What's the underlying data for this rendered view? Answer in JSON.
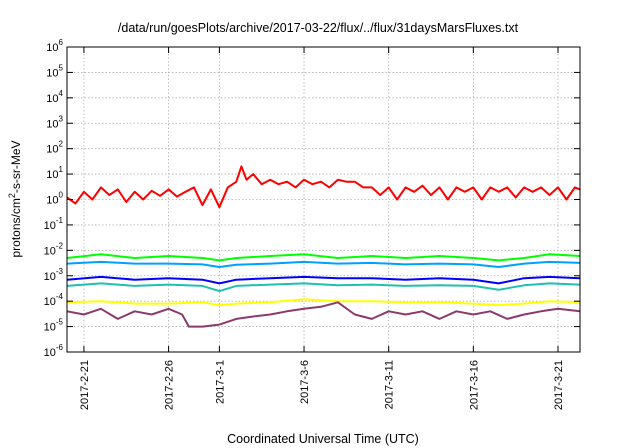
{
  "chart_data": {
    "type": "line",
    "title": "/data/run/goesPlots/archive/2017-03-22/flux/../flux/31daysMarsFluxes.txt",
    "xlabel": "Coordinated Universal Time (UTC)",
    "ylabel_main": "protons/cm",
    "ylabel_sup": "2",
    "ylabel_rest": "-s-sr-MeV",
    "yscale": "log",
    "ylim": [
      1e-06,
      1000000.0
    ],
    "y_ticks": [
      {
        "base": "10",
        "exp": "-6",
        "value": 1e-06
      },
      {
        "base": "10",
        "exp": "-5",
        "value": 1e-05
      },
      {
        "base": "10",
        "exp": "-4",
        "value": 0.0001
      },
      {
        "base": "10",
        "exp": "-3",
        "value": 0.001
      },
      {
        "base": "10",
        "exp": "-2",
        "value": 0.01
      },
      {
        "base": "10",
        "exp": "-1",
        "value": 0.1
      },
      {
        "base": "10",
        "exp": "0",
        "value": 1
      },
      {
        "base": "10",
        "exp": "1",
        "value": 10
      },
      {
        "base": "10",
        "exp": "2",
        "value": 100
      },
      {
        "base": "10",
        "exp": "3",
        "value": 1000
      },
      {
        "base": "10",
        "exp": "4",
        "value": 10000
      },
      {
        "base": "10",
        "exp": "5",
        "value": 100000
      },
      {
        "base": "10",
        "exp": "6",
        "value": 1000000
      }
    ],
    "xlim": [
      "2017-02-20",
      "2017-03-23"
    ],
    "x_ticks": [
      "2017-2-21",
      "2017-2-26",
      "2017-3-1",
      "2017-3-6",
      "2017-3-11",
      "2017-3-16",
      "2017-3-21"
    ],
    "x_tick_days": [
      1,
      6,
      9,
      14,
      19,
      24,
      29
    ],
    "x_span_days": 30.3,
    "grid": true,
    "series": [
      {
        "color": "#ff0000",
        "x_days": [
          0.0,
          0.5,
          1.0,
          1.5,
          2.0,
          2.5,
          3.0,
          3.5,
          4.0,
          4.5,
          5.0,
          5.5,
          6.0,
          6.5,
          7.0,
          7.5,
          8.0,
          8.5,
          9.0,
          9.5,
          10.0,
          10.3,
          10.6,
          11.0,
          11.5,
          12.0,
          12.5,
          13.0,
          13.5,
          14.0,
          14.5,
          15.0,
          15.5,
          16.0,
          16.5,
          17.0,
          17.5,
          18.0,
          18.5,
          19.0,
          19.5,
          20.0,
          20.5,
          21.0,
          21.5,
          22.0,
          22.5,
          23.0,
          23.5,
          24.0,
          24.5,
          25.0,
          25.5,
          26.0,
          26.5,
          27.0,
          27.5,
          28.0,
          28.5,
          29.0,
          29.5,
          30.0,
          30.3
        ],
        "values": [
          1.2,
          0.7,
          2.0,
          1.0,
          3.0,
          1.5,
          2.5,
          0.8,
          2.0,
          1.0,
          2.2,
          1.4,
          2.5,
          1.3,
          2.0,
          3.0,
          0.6,
          2.5,
          0.5,
          3.0,
          5.0,
          20.0,
          6.0,
          10.0,
          4.0,
          6.0,
          4.0,
          5.0,
          3.0,
          6.0,
          4.0,
          5.0,
          3.0,
          6.0,
          5.0,
          5.0,
          3.0,
          3.0,
          1.5,
          3.0,
          1.0,
          3.0,
          2.0,
          3.5,
          1.5,
          3.0,
          1.0,
          3.0,
          2.0,
          3.0,
          1.0,
          3.0,
          2.0,
          3.0,
          1.2,
          3.0,
          2.0,
          3.0,
          1.5,
          3.0,
          1.0,
          3.0,
          2.5
        ]
      },
      {
        "color": "#00ff00",
        "x_days": [
          0,
          2,
          4,
          6,
          8,
          9,
          10,
          12,
          14,
          16,
          18,
          20,
          22,
          24,
          25.5,
          27,
          28.5,
          30.3
        ],
        "values": [
          0.005,
          0.007,
          0.005,
          0.006,
          0.005,
          0.004,
          0.005,
          0.006,
          0.007,
          0.005,
          0.006,
          0.005,
          0.006,
          0.005,
          0.004,
          0.005,
          0.007,
          0.006
        ]
      },
      {
        "color": "#00a0ff",
        "x_days": [
          0,
          2,
          4,
          6,
          8,
          9,
          10,
          12,
          14,
          16,
          18,
          20,
          22,
          24,
          25.5,
          27,
          28.5,
          30.3
        ],
        "values": [
          0.003,
          0.0035,
          0.003,
          0.003,
          0.0028,
          0.0022,
          0.0027,
          0.003,
          0.0035,
          0.003,
          0.0032,
          0.0028,
          0.003,
          0.0028,
          0.0022,
          0.003,
          0.0035,
          0.0032
        ]
      },
      {
        "color": "#0000ff",
        "x_days": [
          0,
          2,
          4,
          6,
          8,
          9,
          10,
          12,
          14,
          16,
          18,
          20,
          22,
          24,
          25.5,
          27,
          28.5,
          30.3
        ],
        "values": [
          0.0007,
          0.0009,
          0.0007,
          0.0008,
          0.0007,
          0.0005,
          0.0007,
          0.0008,
          0.0009,
          0.0008,
          0.0008,
          0.0007,
          0.0008,
          0.0007,
          0.0005,
          0.0008,
          0.0009,
          0.0008
        ]
      },
      {
        "color": "#20c0b0",
        "x_days": [
          0,
          2,
          4,
          6,
          8,
          9,
          10,
          12,
          14,
          16,
          18,
          20,
          22,
          24,
          25.5,
          27,
          28.5,
          30.3
        ],
        "values": [
          0.0004,
          0.0005,
          0.0004,
          0.00045,
          0.0004,
          0.00025,
          0.0004,
          0.00045,
          0.0005,
          0.00042,
          0.00045,
          0.0004,
          0.00042,
          0.0004,
          0.00028,
          0.00042,
          0.0005,
          0.00045
        ]
      },
      {
        "color": "#ffff00",
        "x_days": [
          0,
          2,
          4,
          6,
          8,
          9,
          10,
          12,
          14,
          16,
          18,
          20,
          22,
          24,
          25.5,
          27,
          28.5,
          30.3
        ],
        "values": [
          9e-05,
          0.0001,
          8e-05,
          8e-05,
          9e-05,
          7e-05,
          8e-05,
          9e-05,
          0.00012,
          0.0001,
          0.0001,
          9e-05,
          9e-05,
          8e-05,
          7e-05,
          8e-05,
          0.0001,
          9e-05
        ]
      },
      {
        "color": "#8b3a6e",
        "x_days": [
          0,
          1,
          2,
          3,
          4,
          5,
          6,
          6.8,
          7.2,
          8,
          9,
          10,
          11,
          12,
          13,
          14,
          15,
          16,
          17,
          18,
          19,
          20,
          21,
          22,
          23,
          24,
          25,
          26,
          27,
          28,
          29,
          30.3
        ],
        "values": [
          4e-05,
          3e-05,
          5e-05,
          2e-05,
          4e-05,
          3e-05,
          5e-05,
          3e-05,
          1e-05,
          1e-05,
          1.2e-05,
          2e-05,
          2.5e-05,
          3e-05,
          4e-05,
          5e-05,
          6e-05,
          9e-05,
          3e-05,
          2e-05,
          4e-05,
          3e-05,
          4e-05,
          2e-05,
          4e-05,
          3e-05,
          4e-05,
          2e-05,
          3e-05,
          4e-05,
          5e-05,
          4e-05
        ]
      }
    ]
  }
}
